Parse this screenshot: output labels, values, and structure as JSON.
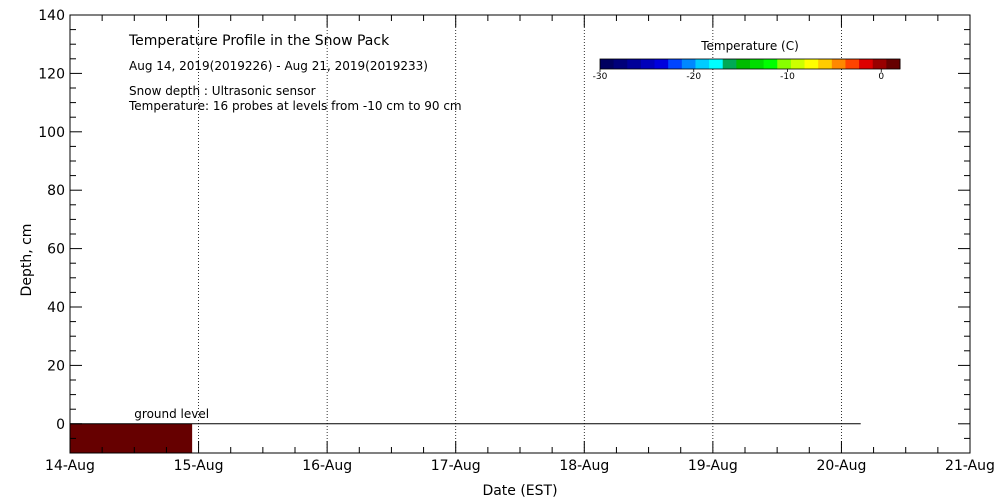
{
  "chart_data": {
    "type": "heatmap",
    "title": "Temperature Profile in the Snow Pack",
    "subtitle": "Aug 14, 2019(2019226) - Aug 21, 2019(2019233)",
    "notes": [
      "Snow depth : Ultrasonic sensor",
      "Temperature: 16 probes at levels from -10 cm to 90 cm"
    ],
    "xlabel": "Date (EST)",
    "ylabel": "Depth, cm",
    "x_ticks": [
      "14-Aug",
      "15-Aug",
      "16-Aug",
      "17-Aug",
      "18-Aug",
      "19-Aug",
      "20-Aug",
      "21-Aug"
    ],
    "xlim": [
      0,
      7
    ],
    "ylim": [
      -10,
      140
    ],
    "y_ticks": [
      0,
      20,
      40,
      60,
      80,
      100,
      120,
      140
    ],
    "grid": "dotted vertical at dates",
    "ground_level": {
      "label": "ground level",
      "depth": 0,
      "x_start": 0,
      "x_end": 6.15
    },
    "temperature_cells": [
      {
        "x_start": 0.0,
        "x_end": 0.95,
        "depth_top": 0,
        "depth_bottom": -10,
        "color": "#660000"
      }
    ],
    "colorbar": {
      "title": "Temperature (C)",
      "range": [
        -30,
        2
      ],
      "ticks": [
        -30,
        -20,
        -10,
        0
      ],
      "colors": [
        "#000060",
        "#00007a",
        "#000099",
        "#0000bb",
        "#0000dd",
        "#0044ff",
        "#0088ff",
        "#00ccff",
        "#00ffff",
        "#00aa55",
        "#00bb00",
        "#00dd00",
        "#00ff00",
        "#88ff00",
        "#ccff00",
        "#ffff00",
        "#ffcc00",
        "#ff8800",
        "#ff4400",
        "#dd0000",
        "#990000",
        "#660000"
      ]
    }
  }
}
